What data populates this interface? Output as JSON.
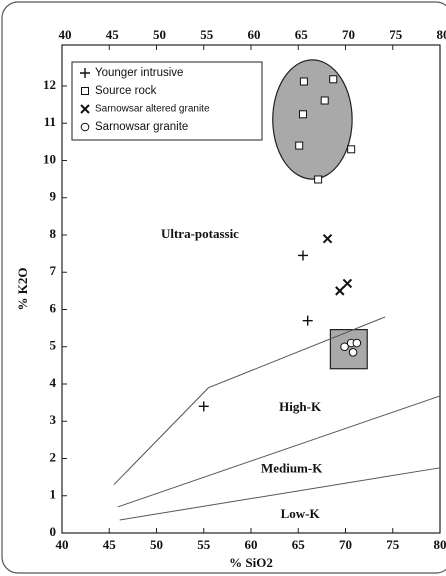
{
  "chart_data": {
    "type": "scatter",
    "x_label": "% SiO2",
    "y_label": "% K2O",
    "xlim": [
      40,
      80
    ],
    "ylim": [
      0,
      13.1
    ],
    "xticks": [
      40,
      45,
      50,
      55,
      60,
      65,
      70,
      75,
      80
    ],
    "yticks": [
      0,
      1,
      2,
      3,
      4,
      5,
      6,
      7,
      8,
      9,
      10,
      11,
      12
    ],
    "series": [
      {
        "name": "Younger intrusive",
        "marker": "plus",
        "color": "#111111",
        "x": [
          55,
          66,
          65.5
        ],
        "y": [
          3.4,
          5.7,
          7.45
        ]
      },
      {
        "name": "Source rock",
        "marker": "square",
        "color": "#111111",
        "x": [
          65.6,
          68.7,
          65.5,
          67.8,
          65.1,
          70.6,
          67.1
        ],
        "y": [
          12.12,
          12.18,
          11.24,
          11.61,
          10.4,
          10.3,
          9.49
        ]
      },
      {
        "name": "Sarnowsar altered granite",
        "marker": "x",
        "color": "#111111",
        "x": [
          68.1,
          70.2,
          69.4
        ],
        "y": [
          7.9,
          6.7,
          6.5
        ]
      },
      {
        "name": "Sarnowsar granite",
        "marker": "circle",
        "color": "#111111",
        "x": [
          69.9,
          70.6,
          71.2,
          70.8
        ],
        "y": [
          5.0,
          5.1,
          5.1,
          4.85
        ]
      }
    ],
    "lines": [
      {
        "x": [
          45.5,
          55.5,
          74.2
        ],
        "y": [
          1.3,
          3.9,
          5.8
        ]
      },
      {
        "x": [
          45.9,
          80
        ],
        "y": [
          0.7,
          3.68
        ]
      },
      {
        "x": [
          46.1,
          80
        ],
        "y": [
          0.35,
          1.75
        ]
      }
    ],
    "regions": [
      {
        "shape": "ellipse",
        "x": [
          62.3,
          70.7
        ],
        "y": [
          9.5,
          12.7
        ],
        "color": "#a9a9a9"
      },
      {
        "shape": "rect",
        "x": [
          68.4,
          72.3
        ],
        "y": [
          4.41,
          5.46
        ],
        "color": "#a9a9a9"
      }
    ],
    "annotations": [
      {
        "text": "Ultra-potassic",
        "x": 54.6,
        "y": 8.0
      },
      {
        "text": "High-K",
        "x": 65.2,
        "y": 3.35
      },
      {
        "text": "Medium-K",
        "x": 64.3,
        "y": 1.7
      },
      {
        "text": "Low-K",
        "x": 65.2,
        "y": 0.48
      }
    ]
  }
}
